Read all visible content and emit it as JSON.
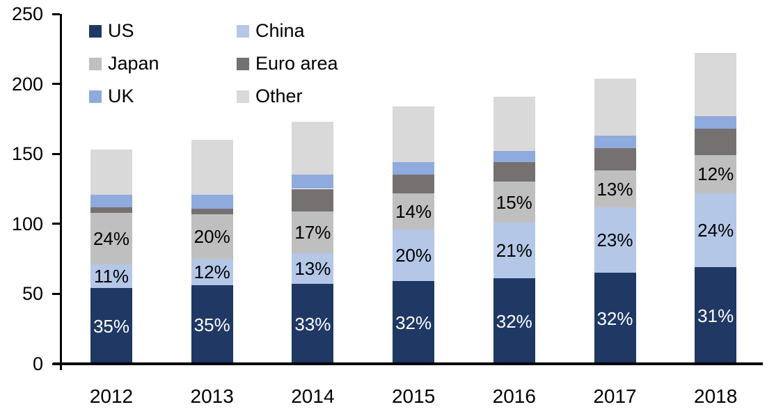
{
  "chart_data": {
    "type": "bar",
    "stacked": true,
    "title": "",
    "categories": [
      "2012",
      "2013",
      "2014",
      "2015",
      "2016",
      "2017",
      "2018"
    ],
    "y_axis": {
      "min": 0,
      "max": 250,
      "tick_step": 50,
      "tick_labels": [
        "0",
        "50",
        "100",
        "150",
        "200",
        "250"
      ]
    },
    "grid": "off",
    "legend_position": "top-left",
    "series": [
      {
        "name": "US",
        "color": "#1F3864",
        "values": [
          54,
          56,
          57,
          59,
          61,
          65,
          69
        ],
        "labels": [
          "35%",
          "35%",
          "33%",
          "32%",
          "32%",
          "32%",
          "31%"
        ],
        "label_color": "#FFFFFF"
      },
      {
        "name": "China",
        "color": "#B4C7E7",
        "values": [
          17,
          19,
          22,
          37,
          40,
          47,
          53
        ],
        "labels": [
          "11%",
          "12%",
          "13%",
          "20%",
          "21%",
          "23%",
          "24%"
        ],
        "label_color": "#000000"
      },
      {
        "name": "Japan",
        "color": "#BFBFBF",
        "values": [
          37,
          32,
          30,
          26,
          29,
          26,
          27
        ],
        "labels": [
          "24%",
          "20%",
          "17%",
          "14%",
          "15%",
          "13%",
          "12%"
        ],
        "label_color": "#000000"
      },
      {
        "name": "Euro area",
        "color": "#767171",
        "values": [
          4,
          4,
          16,
          13,
          14,
          16,
          19
        ],
        "labels": null,
        "label_color": null
      },
      {
        "name": "UK",
        "color": "#8FAADC",
        "values": [
          9,
          10,
          10,
          9,
          8,
          9,
          9
        ],
        "labels": null,
        "label_color": null
      },
      {
        "name": "Other",
        "color": "#D9D9D9",
        "values": [
          32,
          39,
          38,
          40,
          39,
          41,
          45
        ],
        "labels": null,
        "label_color": null
      }
    ],
    "approx_totals": [
      153,
      160,
      173,
      184,
      191,
      204,
      222
    ]
  }
}
